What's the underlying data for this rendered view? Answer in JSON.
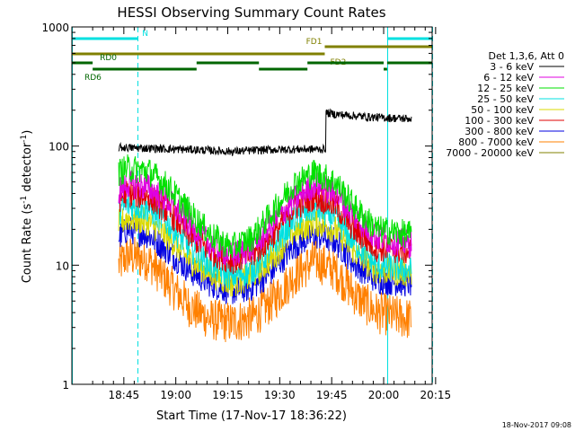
{
  "chart_data": {
    "type": "line",
    "title": "HESSI Observing Summary Count Rates",
    "xlabel": "Start Time (17-Nov-17 18:36:22)",
    "ylabel_main": "Count Rate (s",
    "ylabel_sup1": "-1",
    "ylabel_mid": " detector",
    "ylabel_sup2": "-1",
    "ylabel_end": ")",
    "yscale": "log",
    "ylim": [
      1,
      1000
    ],
    "xlim_minutes": [
      -6,
      98
    ],
    "x_ticks": [
      {
        "minute": 9,
        "label": "18:45"
      },
      {
        "minute": 24,
        "label": "19:00"
      },
      {
        "minute": 39,
        "label": "19:15"
      },
      {
        "minute": 54,
        "label": "19:30"
      },
      {
        "minute": 69,
        "label": "19:45"
      },
      {
        "minute": 84,
        "label": "20:00"
      },
      {
        "minute": 99,
        "label": "20:15"
      }
    ],
    "y_ticks": [
      {
        "value": 1,
        "label": "1"
      },
      {
        "value": 10,
        "label": "10"
      },
      {
        "value": 100,
        "label": "100"
      },
      {
        "value": 1000,
        "label": "1000"
      }
    ],
    "legend_placement": "right",
    "legend_header": "Det 1,3,6, Att 0",
    "footer_date": "18-Nov-2017 09:08",
    "series": [
      {
        "name": "3 - 6 keV",
        "color": "#000000",
        "minutes": [
          7.5,
          10,
          20,
          30,
          40,
          50,
          60,
          67,
          67.3,
          70,
          80,
          90,
          92
        ],
        "values": [
          97,
          97,
          95,
          93,
          90,
          93,
          94,
          94,
          190,
          185,
          175,
          170,
          170
        ]
      },
      {
        "name": "6 - 12 keV",
        "color": "#e000e0",
        "minutes": [
          7.5,
          10,
          16,
          22,
          28,
          34,
          40,
          46,
          52,
          58,
          64,
          70,
          76,
          82,
          92
        ],
        "values": [
          42,
          48,
          45,
          34,
          22,
          15,
          12,
          14,
          22,
          35,
          48,
          40,
          25,
          17,
          15
        ]
      },
      {
        "name": "12 - 25 keV",
        "color": "#00e000",
        "minutes": [
          7.5,
          10,
          16,
          22,
          28,
          34,
          40,
          46,
          52,
          58,
          64,
          70,
          76,
          82,
          92
        ],
        "values": [
          60,
          65,
          62,
          45,
          28,
          18,
          14,
          17,
          28,
          48,
          60,
          50,
          30,
          20,
          18
        ]
      },
      {
        "name": "25 - 50 keV",
        "color": "#00e0e0",
        "minutes": [
          7.5,
          10,
          16,
          22,
          28,
          34,
          40,
          46,
          52,
          58,
          64,
          70,
          76,
          82,
          92
        ],
        "values": [
          28,
          32,
          30,
          22,
          14,
          10,
          8,
          9,
          14,
          24,
          30,
          25,
          15,
          10,
          9
        ]
      },
      {
        "name": "50 - 100 keV",
        "color": "#d8d800",
        "minutes": [
          7.5,
          10,
          16,
          22,
          28,
          34,
          40,
          46,
          52,
          58,
          64,
          70,
          76,
          82,
          92
        ],
        "values": [
          22,
          25,
          23,
          17,
          11,
          8.5,
          7,
          8,
          11.5,
          19,
          23,
          20,
          12.5,
          9,
          8.5
        ]
      },
      {
        "name": "100 - 300 keV",
        "color": "#e00000",
        "minutes": [
          7.5,
          10,
          16,
          22,
          28,
          34,
          40,
          46,
          52,
          58,
          64,
          70,
          76,
          82,
          92
        ],
        "values": [
          36,
          40,
          38,
          28,
          18,
          13,
          11,
          12,
          18,
          30,
          38,
          32,
          19,
          14,
          13
        ]
      },
      {
        "name": "300 - 800 keV",
        "color": "#0000e0",
        "minutes": [
          7.5,
          10,
          16,
          22,
          28,
          34,
          40,
          46,
          52,
          58,
          64,
          70,
          76,
          82,
          92
        ],
        "values": [
          17,
          20,
          18,
          13,
          9,
          7,
          6,
          6.5,
          9,
          14.5,
          18,
          16,
          10,
          7.5,
          7
        ]
      },
      {
        "name": "800 - 7000 keV",
        "color": "#ff8000",
        "minutes": [
          7.5,
          10,
          16,
          22,
          28,
          34,
          40,
          46,
          52,
          58,
          64,
          70,
          76,
          82,
          92
        ],
        "values": [
          10,
          12,
          11,
          7,
          4.5,
          3.5,
          3.3,
          3.6,
          5,
          8,
          11,
          9,
          5.5,
          4,
          3.5
        ]
      },
      {
        "name": "7000 - 20000 keV",
        "color": "#808000",
        "minutes": [],
        "values": []
      }
    ],
    "flags": [
      {
        "label": "N",
        "color": "#00e0e0",
        "segments": [
          [
            -6,
            13
          ],
          [
            85,
            98
          ]
        ],
        "value": 800
      },
      {
        "label": "FD1",
        "color": "#808000",
        "segments": [
          [
            67,
            98
          ]
        ],
        "value": 680
      },
      {
        "label": "FD2",
        "color": "#808000",
        "segments": [
          [
            -6,
            67
          ]
        ],
        "value": 590
      },
      {
        "label": "RD0",
        "color": "#006600",
        "segments": [
          [
            -6,
            0
          ],
          [
            30,
            48
          ],
          [
            62,
            84
          ],
          [
            85,
            98
          ]
        ],
        "value": 500
      },
      {
        "label": "RD6",
        "color": "#006600",
        "segments": [
          [
            0,
            30
          ],
          [
            48,
            62
          ],
          [
            84,
            85
          ]
        ],
        "value": 440
      }
    ],
    "vlines": [
      {
        "minute": -6,
        "color": "#00e0e0",
        "style": "solid"
      },
      {
        "minute": 13,
        "color": "#00e0e0",
        "style": "dashed"
      },
      {
        "minute": 85,
        "color": "#00e0e0",
        "style": "solid"
      },
      {
        "minute": 98,
        "color": "#00e0e0",
        "style": "dashed"
      }
    ]
  }
}
